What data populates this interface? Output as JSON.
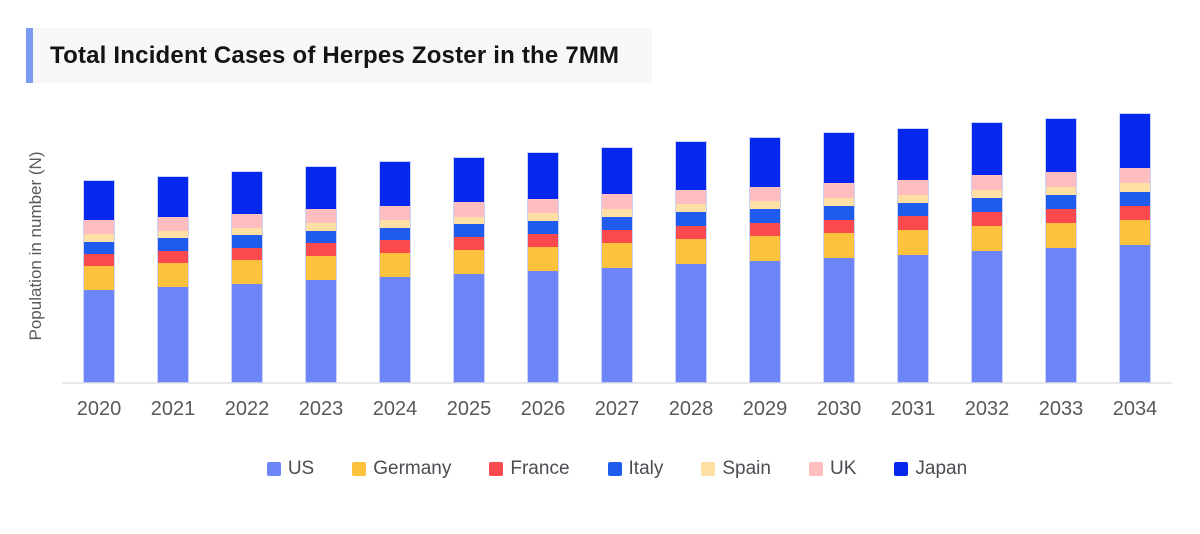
{
  "title": {
    "text": "Total Incident Cases of Herpes Zoster in the 7MM"
  },
  "y_axis": {
    "label": "Population in number (N)"
  },
  "accent_color": "#7d9bf5",
  "chart_data": {
    "type": "bar",
    "stacked": true,
    "title": "Total Incident Cases of Herpes Zoster in the 7MM",
    "xlabel": "",
    "ylabel": "Population in number (N)",
    "legend_position": "bottom",
    "grid": false,
    "axis_note": "no numeric y-axis ticks shown; values are relative heights read from the plot",
    "categories": [
      "2020",
      "2021",
      "2022",
      "2023",
      "2024",
      "2025",
      "2026",
      "2027",
      "2028",
      "2029",
      "2030",
      "2031",
      "2032",
      "2033",
      "2034"
    ],
    "series": [
      {
        "name": "US",
        "color": "#6c86f8",
        "values": [
          92,
          95,
          98,
          102,
          105,
          108,
          111,
          114,
          118,
          121,
          124,
          127,
          131,
          134,
          137
        ]
      },
      {
        "name": "Germany",
        "color": "#fcc23c",
        "values": [
          24,
          24,
          24,
          24,
          24,
          24,
          24,
          25,
          25,
          25,
          25,
          25,
          25,
          25,
          25
        ]
      },
      {
        "name": "France",
        "color": "#fb4a4e",
        "values": [
          12.3,
          12.4,
          12.5,
          12.7,
          12.8,
          12.9,
          13.0,
          13.1,
          13.3,
          13.4,
          13.5,
          13.6,
          13.7,
          13.9,
          14.0
        ]
      },
      {
        "name": "Italy",
        "color": "#1f5bec",
        "values": [
          12.0,
          12.2,
          12.3,
          12.5,
          12.7,
          12.8,
          13.0,
          13.1,
          13.3,
          13.5,
          13.6,
          13.8,
          14.0,
          14.1,
          14.3
        ]
      },
      {
        "name": "Spain",
        "color": "#ffdfa3",
        "values": [
          7.5,
          7.6,
          7.6,
          7.7,
          7.7,
          7.8,
          7.8,
          7.9,
          8.0,
          8.0,
          8.1,
          8.1,
          8.2,
          8.2,
          8.3
        ]
      },
      {
        "name": "UK",
        "color": "#ffbdbf",
        "values": [
          14.0,
          14.1,
          14.1,
          14.2,
          14.3,
          14.4,
          14.4,
          14.5,
          14.6,
          14.6,
          14.7,
          14.8,
          14.9,
          14.9,
          15.0
        ]
      },
      {
        "name": "Japan",
        "color": "#0627ec",
        "values": [
          39.0,
          40.1,
          41.1,
          42.2,
          43.3,
          44.4,
          45.4,
          46.5,
          47.6,
          48.6,
          49.7,
          50.8,
          51.9,
          52.9,
          54.0
        ]
      }
    ]
  }
}
